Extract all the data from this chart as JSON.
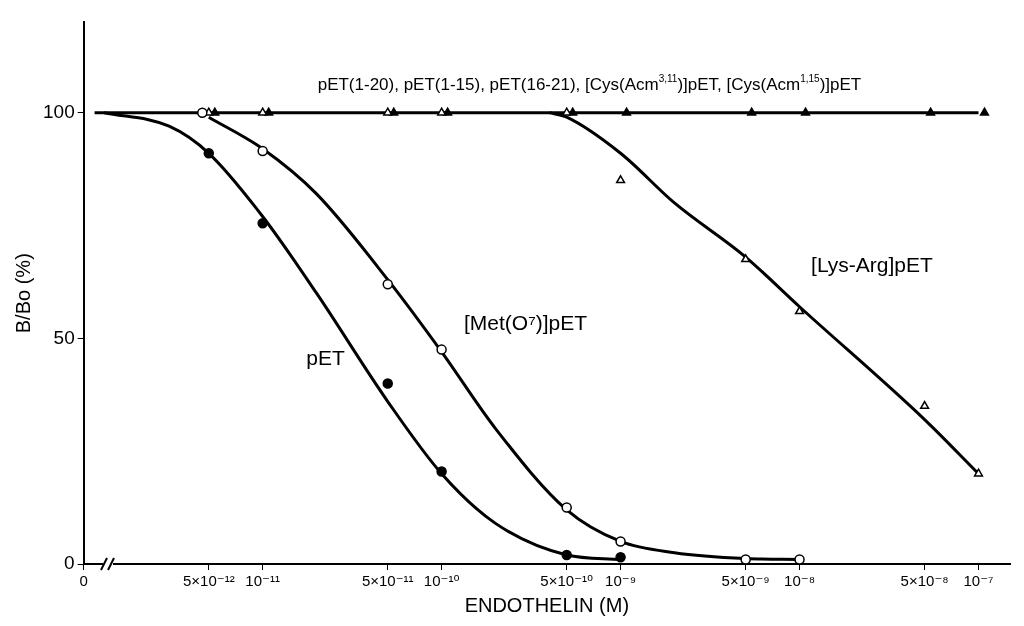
{
  "chart_data": {
    "type": "line",
    "xlabel": "ENDOTHELIN (M)",
    "ylabel": "B/Bo (%)",
    "log": "x",
    "grid": false,
    "legend": false,
    "xlim": [
      1e-12,
      1.5e-07
    ],
    "ylim": [
      0,
      120
    ],
    "xticks": [
      {
        "value": 1e-12,
        "label": "0"
      },
      {
        "value": 5e-12,
        "label": "5×10⁻¹²"
      },
      {
        "value": 1e-11,
        "label": "10⁻¹¹"
      },
      {
        "value": 5e-11,
        "label": "5×10⁻¹¹"
      },
      {
        "value": 1e-10,
        "label": "10⁻¹⁰"
      },
      {
        "value": 5e-10,
        "label": "5×10⁻¹⁰"
      },
      {
        "value": 1e-09,
        "label": "10⁻⁹"
      },
      {
        "value": 5e-09,
        "label": "5×10⁻⁹"
      },
      {
        "value": 1e-08,
        "label": "10⁻⁸"
      },
      {
        "value": 5e-08,
        "label": "5×10⁻⁸"
      },
      {
        "value": 1e-07,
        "label": "10⁻⁷"
      }
    ],
    "yticks": [
      0,
      50,
      100
    ],
    "series": [
      {
        "name": "pET(1-20), pET(1-15), pET(16-21), [Cys(Acm$^{3,11}$)]pET, [Cys(Acm$^{1,15}$)]pET",
        "type": "line",
        "marker": "none",
        "color": "#000000",
        "x": [
          1.15e-12,
          1e-07
        ],
        "values": [
          100,
          100
        ]
      },
      {
        "name": "pET",
        "type": "line",
        "marker": "none",
        "color": "#000000",
        "x": [
          1.3e-12,
          3e-12,
          5e-12,
          1e-11,
          2e-11,
          5e-11,
          1e-10,
          2e-10,
          5e-10,
          1e-09
        ],
        "values": [
          100,
          97,
          91,
          77,
          60,
          36,
          20,
          9,
          2,
          1
        ]
      },
      {
        "name": "[Met(O⁷)]pET",
        "type": "line",
        "marker": "none",
        "color": "#000000",
        "x": [
          5e-12,
          1e-11,
          2e-11,
          5e-11,
          1e-10,
          2e-10,
          5e-10,
          1e-09,
          2e-09,
          5e-09,
          1e-08
        ],
        "values": [
          99,
          92,
          82,
          63,
          47,
          30,
          12,
          5,
          2.5,
          1.2,
          1
        ]
      },
      {
        "name": "[Lys-Arg]pET",
        "type": "line",
        "marker": "none",
        "color": "#000000",
        "x": [
          4e-10,
          5e-10,
          1e-09,
          2e-09,
          5e-09,
          1e-08,
          5e-08,
          1e-07
        ],
        "values": [
          100,
          99,
          91,
          80,
          68,
          57,
          32,
          20
        ]
      },
      {
        "type": "scatter",
        "marker": "circle",
        "color": "#000000",
        "x": [
          5e-12,
          1e-11,
          5e-11,
          1e-10,
          5e-10,
          1e-09
        ],
        "values": [
          91,
          75.5,
          40,
          20.5,
          2,
          1.5
        ]
      },
      {
        "type": "scatter",
        "marker": "circle",
        "color": "#ffffff",
        "x": [
          4.6e-12,
          1e-11,
          5e-11,
          1e-10,
          5e-10,
          1e-09,
          5e-09,
          1e-08
        ],
        "values": [
          100,
          91.5,
          62,
          47.5,
          12.5,
          5,
          1,
          1
        ]
      },
      {
        "type": "scatter",
        "marker": "triangle",
        "color": "#ffffff",
        "x": [
          5e-12,
          1e-11,
          5e-11,
          1e-10,
          5e-10,
          1e-09,
          5e-09,
          1e-08,
          5e-08,
          1e-07
        ],
        "values": [
          100,
          100,
          100,
          100,
          100,
          85,
          67.5,
          56,
          35,
          20
        ]
      },
      {
        "type": "scatter",
        "marker": "triangle",
        "color": "#000000",
        "x": [
          5.4e-12,
          1.08e-11,
          5.4e-11,
          1.08e-10,
          5.4e-10,
          1.08e-09,
          5.4e-09,
          1.08e-08,
          5.4e-08,
          1.08e-07
        ],
        "values": [
          100,
          100,
          100,
          100,
          100,
          100,
          100,
          100,
          100,
          100
        ]
      }
    ]
  }
}
